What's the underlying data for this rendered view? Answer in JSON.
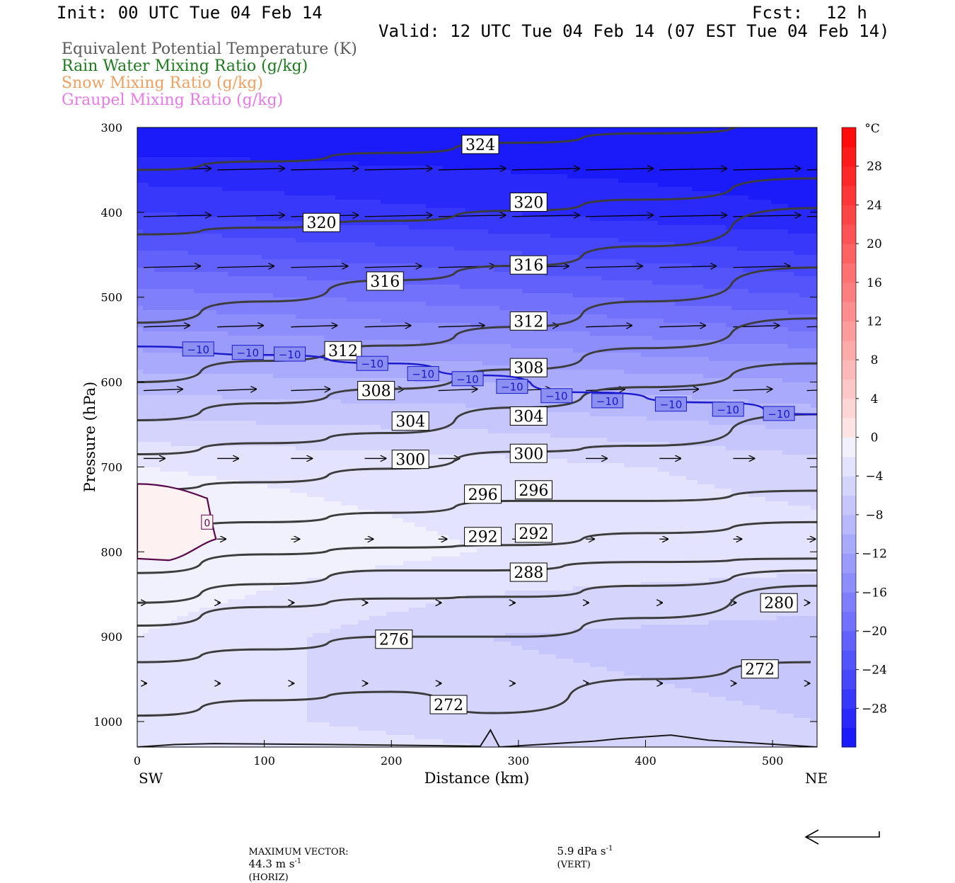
{
  "header": {
    "init": "Init: 00 UTC Tue 04 Feb 14",
    "fcst_label": "Fcst:",
    "fcst_value": "12 h",
    "valid": "Valid: 12 UTC Tue 04 Feb 14 (07 EST Tue 04 Feb 14)"
  },
  "legend": [
    {
      "text": "Equivalent Potential Temperature (K)",
      "color": "#595959"
    },
    {
      "text": "Rain Water Mixing Ratio (g/kg)",
      "color": "#1e7a1e"
    },
    {
      "text": "Snow Mixing Ratio (g/kg)",
      "color": "#f0a060"
    },
    {
      "text": "Graupel Mixing Ratio (g/kg)",
      "color": "#e87ae8"
    }
  ],
  "footer": {
    "max_vector_label": "MAXIMUM VECTOR:",
    "horiz_value": "44.3 m s",
    "horiz_exp": "-1",
    "horiz_tag": "(HORIZ)",
    "vert_value": "5.9 dPa s",
    "vert_exp": "-1",
    "vert_tag": "(VERT)"
  },
  "chart_data": {
    "type": "heatmap",
    "description_fields": {
      "shaded": "Temperature (°C)",
      "contours": "Equivalent Potential Temperature (K)"
    },
    "xlabel": "Distance (km)",
    "ylabel": "Pressure (hPa)",
    "xlim": [
      0,
      535
    ],
    "ylim": [
      1030,
      300
    ],
    "x_ticks": [
      0,
      100,
      200,
      300,
      400,
      500
    ],
    "y_ticks": [
      300,
      400,
      500,
      600,
      700,
      800,
      900,
      1000
    ],
    "x_end_labels": {
      "left": "SW",
      "right": "NE"
    },
    "colorbar": {
      "unit": "°C",
      "levels": [
        -32,
        -30,
        -28,
        -26,
        -24,
        -22,
        -20,
        -18,
        -16,
        -14,
        -12,
        -10,
        -8,
        -6,
        -4,
        -2,
        0,
        2,
        4,
        6,
        8,
        10,
        12,
        14,
        16,
        18,
        20,
        22,
        24,
        26,
        28,
        30,
        32
      ],
      "tick_labels": [
        "28",
        "24",
        "20",
        "16",
        "12",
        "8",
        "4",
        "0",
        "−4",
        "−8",
        "−12",
        "−16",
        "−20",
        "−24",
        "−28"
      ],
      "tick_values": [
        28,
        24,
        20,
        16,
        12,
        8,
        4,
        0,
        -4,
        -8,
        -12,
        -16,
        -20,
        -24,
        -28
      ]
    },
    "temperature_profile": {
      "note": "approximate temperature (°C) by pressure level, left to right columns x=[0,270,535]",
      "levels": [
        300,
        400,
        500,
        600,
        700,
        800,
        900,
        1000,
        1030
      ],
      "x": [
        0,
        270,
        535
      ],
      "values": [
        [
          -32,
          -32,
          -32
        ],
        [
          -26,
          -28,
          -30
        ],
        [
          -17,
          -19,
          -22
        ],
        [
          -9,
          -10,
          -12
        ],
        [
          -2,
          -3,
          -5
        ],
        [
          0,
          -2,
          -3
        ],
        [
          -2,
          -6,
          -7
        ],
        [
          -3,
          -5,
          -6
        ],
        [
          -2,
          -4,
          -4
        ]
      ]
    },
    "theta_e_contours": [
      {
        "value": 324,
        "points": [
          [
            0,
            350
          ],
          [
            100,
            340
          ],
          [
            200,
            330
          ],
          [
            300,
            318
          ],
          [
            400,
            307
          ],
          [
            535,
            296
          ]
        ],
        "labels": [
          [
            270,
            320
          ]
        ]
      },
      {
        "value": 320,
        "points": [
          [
            0,
            426
          ],
          [
            100,
            418
          ],
          [
            200,
            410
          ],
          [
            300,
            398
          ],
          [
            400,
            385
          ],
          [
            535,
            360
          ]
        ],
        "labels": [
          [
            145,
            412
          ],
          [
            308,
            388
          ]
        ]
      },
      {
        "value": 316,
        "points": [
          [
            0,
            530
          ],
          [
            100,
            505
          ],
          [
            200,
            480
          ],
          [
            300,
            463
          ],
          [
            400,
            440
          ],
          [
            535,
            395
          ]
        ],
        "labels": [
          [
            195,
            481
          ],
          [
            308,
            462
          ]
        ]
      },
      {
        "value": 312,
        "points": [
          [
            0,
            600
          ],
          [
            100,
            575
          ],
          [
            200,
            557
          ],
          [
            300,
            535
          ],
          [
            400,
            505
          ],
          [
            535,
            465
          ]
        ],
        "labels": [
          [
            162,
            563
          ],
          [
            308,
            528
          ]
        ]
      },
      {
        "value": 308,
        "points": [
          [
            0,
            645
          ],
          [
            100,
            625
          ],
          [
            200,
            608
          ],
          [
            300,
            585
          ],
          [
            400,
            560
          ],
          [
            535,
            525
          ]
        ],
        "labels": [
          [
            188,
            610
          ],
          [
            308,
            583
          ]
        ]
      },
      {
        "value": 304,
        "points": [
          [
            0,
            685
          ],
          [
            100,
            672
          ],
          [
            200,
            660
          ],
          [
            300,
            630
          ],
          [
            400,
            606
          ],
          [
            535,
            578
          ]
        ],
        "labels": [
          [
            215,
            646
          ],
          [
            308,
            640
          ]
        ]
      },
      {
        "value": 300,
        "points": [
          [
            0,
            727
          ],
          [
            100,
            718
          ],
          [
            200,
            702
          ],
          [
            300,
            682
          ],
          [
            400,
            675
          ],
          [
            535,
            638
          ]
        ],
        "labels": [
          [
            215,
            691
          ],
          [
            308,
            684
          ]
        ]
      },
      {
        "value": 296,
        "points": [
          [
            0,
            773
          ],
          [
            100,
            765
          ],
          [
            200,
            754
          ],
          [
            300,
            740
          ],
          [
            400,
            740
          ],
          [
            535,
            728
          ]
        ],
        "labels": [
          [
            272,
            732
          ],
          [
            312,
            727
          ]
        ]
      },
      {
        "value": 292,
        "points": [
          [
            0,
            825
          ],
          [
            100,
            803
          ],
          [
            200,
            795
          ],
          [
            300,
            792
          ],
          [
            400,
            778
          ],
          [
            535,
            765
          ]
        ],
        "labels": [
          [
            272,
            782
          ],
          [
            312,
            778
          ]
        ]
      },
      {
        "value": 288,
        "points": [
          [
            0,
            860
          ],
          [
            100,
            838
          ],
          [
            200,
            822
          ],
          [
            270,
            822
          ],
          [
            400,
            812
          ],
          [
            535,
            808
          ]
        ],
        "labels": [
          [
            308,
            824
          ]
        ]
      },
      {
        "value": 280,
        "points": [
          [
            0,
            887
          ],
          [
            100,
            865
          ],
          [
            200,
            855
          ],
          [
            300,
            853
          ],
          [
            400,
            840
          ],
          [
            535,
            822
          ]
        ],
        "labels": [
          [
            505,
            860
          ]
        ]
      },
      {
        "value": 276,
        "points": [
          [
            0,
            930
          ],
          [
            100,
            915
          ],
          [
            200,
            900
          ],
          [
            300,
            900
          ],
          [
            400,
            878
          ],
          [
            535,
            840
          ]
        ],
        "labels": [
          [
            202,
            903
          ]
        ]
      },
      {
        "value": 272,
        "points": [
          [
            0,
            993
          ],
          [
            100,
            975
          ],
          [
            200,
            965
          ],
          [
            280,
            990
          ],
          [
            400,
            950
          ],
          [
            530,
            930
          ]
        ],
        "labels": [
          [
            245,
            980
          ],
          [
            490,
            938
          ]
        ]
      }
    ],
    "isotherm_minus10": {
      "value": -10,
      "points": [
        [
          0,
          558
        ],
        [
          100,
          568
        ],
        [
          200,
          578
        ],
        [
          270,
          592
        ],
        [
          350,
          612
        ],
        [
          450,
          624
        ],
        [
          535,
          638
        ]
      ],
      "labels": [
        [
          48,
          561
        ],
        [
          87,
          565
        ],
        [
          120,
          567
        ],
        [
          185,
          578
        ],
        [
          225,
          590
        ],
        [
          260,
          596
        ],
        [
          295,
          605
        ],
        [
          330,
          616
        ],
        [
          370,
          622
        ],
        [
          420,
          626
        ],
        [
          465,
          632
        ],
        [
          505,
          637
        ]
      ]
    },
    "isotherm_zero": {
      "value": 0,
      "label_pos": [
        55,
        765
      ]
    },
    "wind_vectors_note": "horizontal wind arrows pointing east, strongest aloft"
  }
}
